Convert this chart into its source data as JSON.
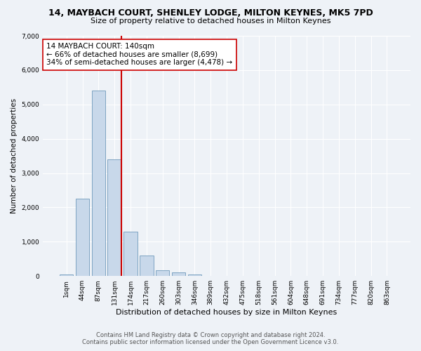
{
  "title": "14, MAYBACH COURT, SHENLEY LODGE, MILTON KEYNES, MK5 7PD",
  "subtitle": "Size of property relative to detached houses in Milton Keynes",
  "xlabel": "Distribution of detached houses by size in Milton Keynes",
  "ylabel": "Number of detached properties",
  "footer_line1": "Contains HM Land Registry data © Crown copyright and database right 2024.",
  "footer_line2": "Contains public sector information licensed under the Open Government Licence v3.0.",
  "annotation_line1": "14 MAYBACH COURT: 140sqm",
  "annotation_line2": "← 66% of detached houses are smaller (8,699)",
  "annotation_line3": "34% of semi-detached houses are larger (4,478) →",
  "bar_color": "#c8d8ea",
  "bar_edge_color": "#5a8ab0",
  "vline_color": "#cc0000",
  "categories": [
    "1sqm",
    "44sqm",
    "87sqm",
    "131sqm",
    "174sqm",
    "217sqm",
    "260sqm",
    "303sqm",
    "346sqm",
    "389sqm",
    "432sqm",
    "475sqm",
    "518sqm",
    "561sqm",
    "604sqm",
    "648sqm",
    "691sqm",
    "734sqm",
    "777sqm",
    "820sqm",
    "863sqm"
  ],
  "values": [
    50,
    2250,
    5400,
    3400,
    1300,
    600,
    175,
    100,
    50,
    0,
    0,
    0,
    0,
    0,
    0,
    0,
    0,
    0,
    0,
    0,
    0
  ],
  "ylim": [
    0,
    7000
  ],
  "yticks": [
    0,
    1000,
    2000,
    3000,
    4000,
    5000,
    6000,
    7000
  ],
  "vline_x": 3.43,
  "background_color": "#eef2f7",
  "title_fontsize": 9,
  "subtitle_fontsize": 8,
  "ylabel_fontsize": 7.5,
  "xlabel_fontsize": 8,
  "tick_fontsize": 6.5,
  "footer_fontsize": 6,
  "annotation_fontsize": 7.5
}
